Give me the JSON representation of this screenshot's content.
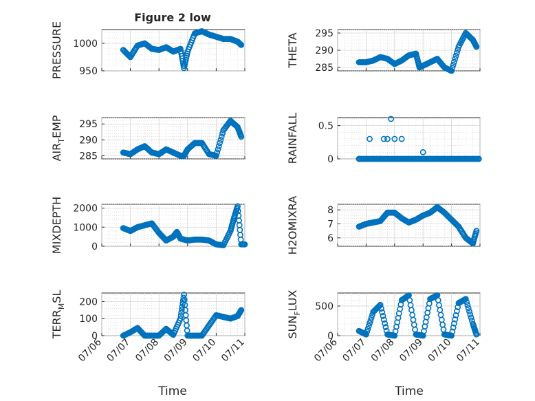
{
  "figure": {
    "title": "Figure 2 low",
    "xlabel": "Time"
  },
  "colors": {
    "marker": "#0072BD",
    "axis": "#262626",
    "grid": "#d6d6d6"
  },
  "chart_data": [
    {
      "type": "scatter",
      "name": "pressure",
      "title": "Figure 2 low",
      "ylabel": "PRESSURE",
      "xlim": [
        "07/06",
        "07/11"
      ],
      "ylim": [
        950,
        1025
      ],
      "yticks": [
        950,
        1000
      ],
      "ytick_labels": [
        "950",
        "1000"
      ],
      "grid": true,
      "xtick_labels_shown": false,
      "x": [
        "07/06 18:00",
        "07/07 00:00",
        "07/07 06:00",
        "07/07 12:00",
        "07/07 18:00",
        "07/08 00:00",
        "07/08 06:00",
        "07/08 12:00",
        "07/08 18:00",
        "07/08 21:00",
        "07/09 00:00",
        "07/09 06:00",
        "07/09 12:00",
        "07/09 18:00",
        "07/10 00:00",
        "07/10 06:00",
        "07/10 12:00",
        "07/10 18:00",
        "07/10 21:00"
      ],
      "y": [
        988,
        975,
        996,
        1000,
        990,
        988,
        993,
        985,
        990,
        955,
        985,
        1018,
        1022,
        1016,
        1012,
        1008,
        1008,
        1003,
        997
      ]
    },
    {
      "type": "scatter",
      "name": "theta",
      "ylabel": "THETA",
      "xlim": [
        "07/06",
        "07/11"
      ],
      "ylim": [
        284,
        296
      ],
      "yticks": [
        285,
        290,
        295
      ],
      "ytick_labels": [
        "285",
        "290",
        "295"
      ],
      "grid": true,
      "xtick_labels_shown": false,
      "x": [
        "07/06 18:00",
        "07/07 00:00",
        "07/07 06:00",
        "07/07 12:00",
        "07/07 18:00",
        "07/08 00:00",
        "07/08 06:00",
        "07/08 12:00",
        "07/08 18:00",
        "07/08 21:00",
        "07/09 00:00",
        "07/09 06:00",
        "07/09 12:00",
        "07/09 18:00",
        "07/10 00:00",
        "07/10 06:00",
        "07/10 12:00",
        "07/10 18:00",
        "07/10 21:00"
      ],
      "y": [
        286.5,
        286.5,
        287,
        288,
        287.5,
        286,
        287,
        288.5,
        289,
        285,
        285.5,
        286.5,
        287.5,
        285,
        284,
        291,
        295,
        293,
        291
      ]
    },
    {
      "type": "scatter",
      "name": "air_temp",
      "ylabel": "AIR_TEMP",
      "xlim": [
        "07/06",
        "07/11"
      ],
      "ylim": [
        284,
        297
      ],
      "yticks": [
        285,
        290,
        295
      ],
      "ytick_labels": [
        "285",
        "290",
        "295"
      ],
      "grid": true,
      "xtick_labels_shown": false,
      "x": [
        "07/06 18:00",
        "07/07 00:00",
        "07/07 06:00",
        "07/07 12:00",
        "07/07 18:00",
        "07/08 00:00",
        "07/08 06:00",
        "07/08 12:00",
        "07/08 18:00",
        "07/08 21:00",
        "07/09 00:00",
        "07/09 06:00",
        "07/09 12:00",
        "07/09 18:00",
        "07/10 00:00",
        "07/10 06:00",
        "07/10 12:00",
        "07/10 18:00",
        "07/10 21:00"
      ],
      "y": [
        286,
        285.5,
        287,
        288,
        286,
        285.5,
        287,
        286,
        285,
        285,
        287,
        289,
        289,
        285.5,
        285,
        293,
        296,
        294,
        291
      ]
    },
    {
      "type": "scatter",
      "name": "rainfall",
      "ylabel": "RAINFALL",
      "xlim": [
        "07/06",
        "07/11"
      ],
      "ylim": [
        0,
        0.62
      ],
      "yticks": [
        0,
        0.5
      ],
      "ytick_labels": [
        "0",
        "0.5"
      ],
      "grid": true,
      "xtick_labels_shown": false,
      "x": [
        "07/06 18:00",
        "07/07 00:00",
        "07/07 03:00",
        "07/07 06:00",
        "07/07 09:00",
        "07/07 12:00",
        "07/07 15:00",
        "07/07 18:00",
        "07/07 21:00",
        "07/08 00:00",
        "07/08 03:00",
        "07/08 06:00",
        "07/08 09:00",
        "07/08 12:00",
        "07/08 18:00",
        "07/09 00:00",
        "07/09 06:00",
        "07/09 12:00",
        "07/09 18:00",
        "07/10 00:00",
        "07/10 06:00",
        "07/10 12:00",
        "07/10 18:00",
        "07/10 23:00"
      ],
      "y": [
        0,
        0,
        0.3,
        0,
        0,
        0,
        0.3,
        0.3,
        0.6,
        0.3,
        0,
        0.3,
        0,
        0,
        0,
        0.1,
        0,
        0,
        0,
        0,
        0,
        0,
        0,
        0
      ]
    },
    {
      "type": "scatter",
      "name": "mixdepth",
      "ylabel": "MIXDEPTH",
      "xlim": [
        "07/06",
        "07/11"
      ],
      "ylim": [
        0,
        2200
      ],
      "yticks": [
        0,
        1000,
        2000
      ],
      "ytick_labels": [
        "0",
        "1000",
        "2000"
      ],
      "grid": true,
      "xtick_labels_shown": false,
      "x": [
        "07/06 18:00",
        "07/07 00:00",
        "07/07 06:00",
        "07/07 12:00",
        "07/07 18:00",
        "07/08 00:00",
        "07/08 06:00",
        "07/08 12:00",
        "07/08 15:00",
        "07/08 18:00",
        "07/09 00:00",
        "07/09 06:00",
        "07/09 12:00",
        "07/09 18:00",
        "07/10 00:00",
        "07/10 06:00",
        "07/10 12:00",
        "07/10 15:00",
        "07/10 18:00",
        "07/10 21:00",
        "07/11 00:00"
      ],
      "y": [
        950,
        800,
        1000,
        1100,
        1200,
        700,
        300,
        500,
        750,
        400,
        300,
        350,
        350,
        300,
        100,
        50,
        800,
        1500,
        2100,
        100,
        100
      ]
    },
    {
      "type": "scatter",
      "name": "h2omixra",
      "ylabel": "H2OMIXRA",
      "xlim": [
        "07/06",
        "07/11"
      ],
      "ylim": [
        5.4,
        8.4
      ],
      "yticks": [
        6,
        7,
        8
      ],
      "ytick_labels": [
        "6",
        "7",
        "8"
      ],
      "grid": true,
      "xtick_labels_shown": false,
      "x": [
        "07/06 18:00",
        "07/07 00:00",
        "07/07 06:00",
        "07/07 12:00",
        "07/07 18:00",
        "07/08 00:00",
        "07/08 06:00",
        "07/08 12:00",
        "07/08 18:00",
        "07/09 00:00",
        "07/09 06:00",
        "07/09 12:00",
        "07/09 18:00",
        "07/10 00:00",
        "07/10 06:00",
        "07/10 12:00",
        "07/10 18:00",
        "07/10 21:00"
      ],
      "y": [
        6.8,
        7.0,
        7.1,
        7.2,
        7.8,
        7.8,
        7.4,
        7.1,
        7.3,
        7.6,
        7.8,
        8.2,
        7.8,
        7.3,
        6.8,
        6.0,
        5.6,
        6.5
      ]
    },
    {
      "type": "scatter",
      "name": "terr_msl",
      "ylabel": "TERR_MSL",
      "xlim": [
        "07/06",
        "07/11"
      ],
      "ylim": [
        0,
        250
      ],
      "yticks": [
        0,
        100,
        200
      ],
      "ytick_labels": [
        "0",
        "100",
        "200"
      ],
      "grid": true,
      "xtick_labels_shown": true,
      "xticks": [
        "07/06",
        "07/07",
        "07/08",
        "07/09",
        "07/10",
        "07/11"
      ],
      "xtick_labels": [
        "07/06",
        "07/07",
        "07/08",
        "07/09",
        "07/10",
        "07/11"
      ],
      "x": [
        "07/06 18:00",
        "07/07 00:00",
        "07/07 06:00",
        "07/07 12:00",
        "07/07 18:00",
        "07/08 00:00",
        "07/08 06:00",
        "07/08 12:00",
        "07/08 18:00",
        "07/08 21:00",
        "07/09 00:00",
        "07/09 06:00",
        "07/09 12:00",
        "07/09 18:00",
        "07/10 00:00",
        "07/10 06:00",
        "07/10 12:00",
        "07/10 18:00",
        "07/10 21:00"
      ],
      "y": [
        0,
        20,
        45,
        0,
        0,
        0,
        40,
        5,
        100,
        240,
        0,
        0,
        0,
        60,
        120,
        110,
        100,
        115,
        150
      ]
    },
    {
      "type": "scatter",
      "name": "sun_flux",
      "ylabel": "SUN_FLUX",
      "xlim": [
        "07/06",
        "07/11"
      ],
      "ylim": [
        0,
        720
      ],
      "yticks": [
        0,
        500
      ],
      "ytick_labels": [
        "0",
        "500"
      ],
      "grid": true,
      "xtick_labels_shown": true,
      "xticks": [
        "07/06",
        "07/07",
        "07/08",
        "07/09",
        "07/10",
        "07/11"
      ],
      "xtick_labels": [
        "07/06",
        "07/07",
        "07/08",
        "07/09",
        "07/10",
        "07/11"
      ],
      "x": [
        "07/06 18:00",
        "07/07 00:00",
        "07/07 06:00",
        "07/07 12:00",
        "07/07 18:00",
        "07/08 00:00",
        "07/08 06:00",
        "07/08 12:00",
        "07/08 18:00",
        "07/09 00:00",
        "07/09 06:00",
        "07/09 12:00",
        "07/09 18:00",
        "07/10 00:00",
        "07/10 06:00",
        "07/10 12:00",
        "07/10 18:00",
        "07/10 21:00"
      ],
      "y": [
        80,
        20,
        400,
        520,
        20,
        0,
        600,
        680,
        20,
        0,
        620,
        680,
        20,
        0,
        550,
        620,
        200,
        20
      ]
    }
  ]
}
